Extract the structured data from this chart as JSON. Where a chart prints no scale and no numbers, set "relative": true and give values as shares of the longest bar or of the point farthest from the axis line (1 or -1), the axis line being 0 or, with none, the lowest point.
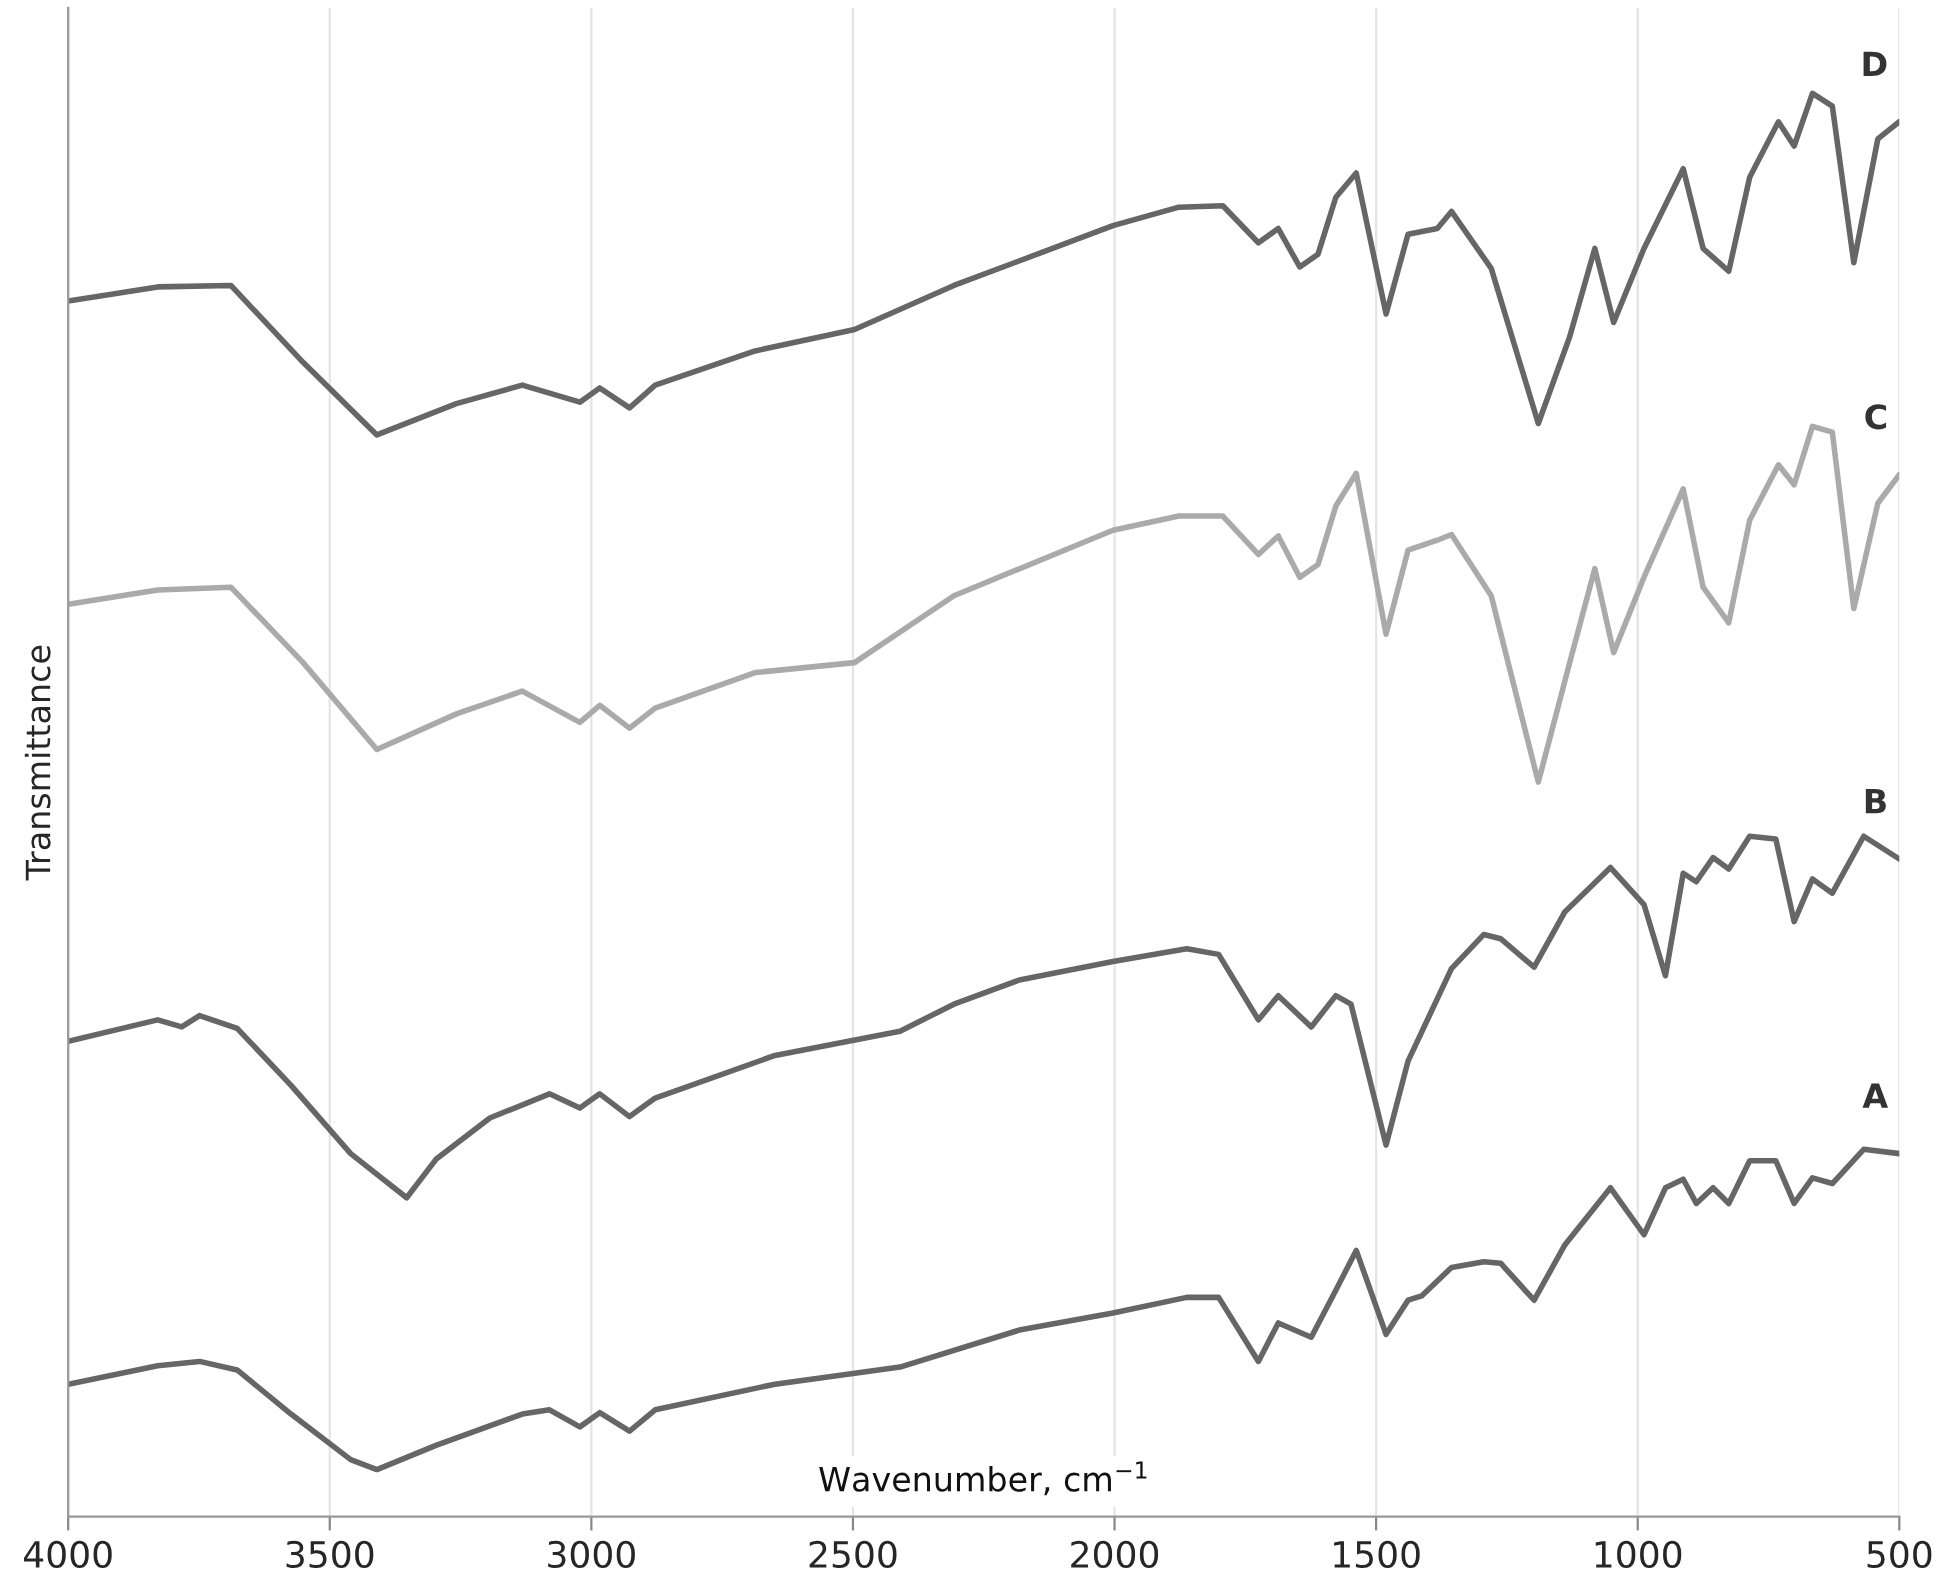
{
  "chart_data": {
    "type": "line",
    "relative": true,
    "xlabel": "Wavenumber, cm$^{−1}$",
    "ylabel": "Transmittance",
    "xlim": [
      4000,
      500
    ],
    "xticks": [
      4000,
      3500,
      3000,
      2500,
      2000,
      1500,
      1000,
      500
    ],
    "grid": "x",
    "tick_labels": "x",
    "legend": false,
    "marker": "none",
    "line_style": "solid",
    "series": [
      {
        "name": "D",
        "color": "#666666",
        "x": [
          4000,
          3829,
          3689,
          3551,
          3410,
          3258,
          3132,
          3022,
          2984,
          2927,
          2878,
          2687,
          2497,
          2307,
          2003,
          1877,
          1793,
          1725,
          1687,
          1646,
          1611,
          1577,
          1538,
          1481,
          1439,
          1383,
          1356,
          1280,
          1190,
          1130,
          1082,
          1046,
          988,
          913,
          875,
          826,
          786,
          731,
          701,
          666,
          628,
          587,
          541,
          500
        ],
        "values": [
          0.854,
          0.864,
          0.865,
          0.811,
          0.76,
          0.782,
          0.795,
          0.783,
          0.793,
          0.779,
          0.795,
          0.819,
          0.834,
          0.865,
          0.907,
          0.92,
          0.921,
          0.895,
          0.905,
          0.878,
          0.887,
          0.927,
          0.944,
          0.845,
          0.901,
          0.905,
          0.917,
          0.877,
          0.768,
          0.829,
          0.891,
          0.839,
          0.891,
          0.947,
          0.891,
          0.875,
          0.941,
          0.98,
          0.963,
          1.0,
          0.991,
          0.881,
          0.968,
          0.98
        ]
      },
      {
        "name": "C",
        "color": "#aaaaaa",
        "x": [
          4000,
          3829,
          3689,
          3551,
          3410,
          3258,
          3132,
          3022,
          2984,
          2927,
          2878,
          2687,
          2497,
          2307,
          2003,
          1877,
          1793,
          1725,
          1687,
          1646,
          1611,
          1577,
          1538,
          1481,
          1439,
          1383,
          1356,
          1280,
          1190,
          1130,
          1082,
          1046,
          988,
          913,
          875,
          826,
          786,
          731,
          701,
          666,
          628,
          587,
          541,
          500
        ],
        "values": [
          0.641,
          0.651,
          0.653,
          0.6,
          0.539,
          0.564,
          0.58,
          0.558,
          0.57,
          0.554,
          0.568,
          0.593,
          0.6,
          0.647,
          0.693,
          0.703,
          0.703,
          0.676,
          0.689,
          0.66,
          0.669,
          0.71,
          0.733,
          0.62,
          0.679,
          0.686,
          0.69,
          0.647,
          0.516,
          0.6,
          0.666,
          0.607,
          0.66,
          0.722,
          0.653,
          0.628,
          0.7,
          0.739,
          0.725,
          0.766,
          0.762,
          0.638,
          0.712,
          0.732
        ]
      },
      {
        "name": "B",
        "color": "#666666",
        "x": [
          4000,
          3829,
          3783,
          3749,
          3677,
          3574,
          3460,
          3353,
          3297,
          3194,
          3080,
          3022,
          2984,
          2927,
          2878,
          2649,
          2410,
          2307,
          2182,
          2003,
          1862,
          1801,
          1725,
          1687,
          1624,
          1577,
          1548,
          1481,
          1439,
          1356,
          1294,
          1262,
          1198,
          1139,
          1052,
          988,
          947,
          913,
          888,
          856,
          826,
          786,
          736,
          701,
          666,
          628,
          568,
          500
        ],
        "values": [
          0.334,
          0.349,
          0.344,
          0.352,
          0.343,
          0.303,
          0.255,
          0.224,
          0.251,
          0.28,
          0.297,
          0.287,
          0.297,
          0.281,
          0.294,
          0.324,
          0.341,
          0.36,
          0.377,
          0.39,
          0.399,
          0.395,
          0.349,
          0.366,
          0.344,
          0.366,
          0.36,
          0.261,
          0.32,
          0.385,
          0.409,
          0.406,
          0.386,
          0.425,
          0.456,
          0.43,
          0.38,
          0.452,
          0.446,
          0.463,
          0.455,
          0.478,
          0.476,
          0.418,
          0.448,
          0.438,
          0.478,
          0.462
        ]
      },
      {
        "name": "A",
        "color": "#666666",
        "x": [
          4000,
          3829,
          3749,
          3677,
          3574,
          3460,
          3410,
          3297,
          3132,
          3080,
          3022,
          2984,
          2927,
          2878,
          2649,
          2410,
          2182,
          2003,
          1862,
          1801,
          1725,
          1687,
          1624,
          1577,
          1538,
          1481,
          1439,
          1413,
          1356,
          1294,
          1262,
          1198,
          1139,
          1052,
          988,
          947,
          913,
          888,
          856,
          826,
          786,
          736,
          701,
          666,
          628,
          568,
          500
        ],
        "values": [
          0.093,
          0.106,
          0.109,
          0.103,
          0.072,
          0.04,
          0.033,
          0.05,
          0.072,
          0.075,
          0.063,
          0.073,
          0.06,
          0.075,
          0.093,
          0.105,
          0.131,
          0.143,
          0.154,
          0.154,
          0.109,
          0.136,
          0.126,
          0.159,
          0.187,
          0.128,
          0.152,
          0.155,
          0.175,
          0.179,
          0.178,
          0.152,
          0.191,
          0.231,
          0.198,
          0.231,
          0.237,
          0.22,
          0.231,
          0.22,
          0.25,
          0.25,
          0.22,
          0.238,
          0.234,
          0.258,
          0.255
        ]
      }
    ]
  }
}
